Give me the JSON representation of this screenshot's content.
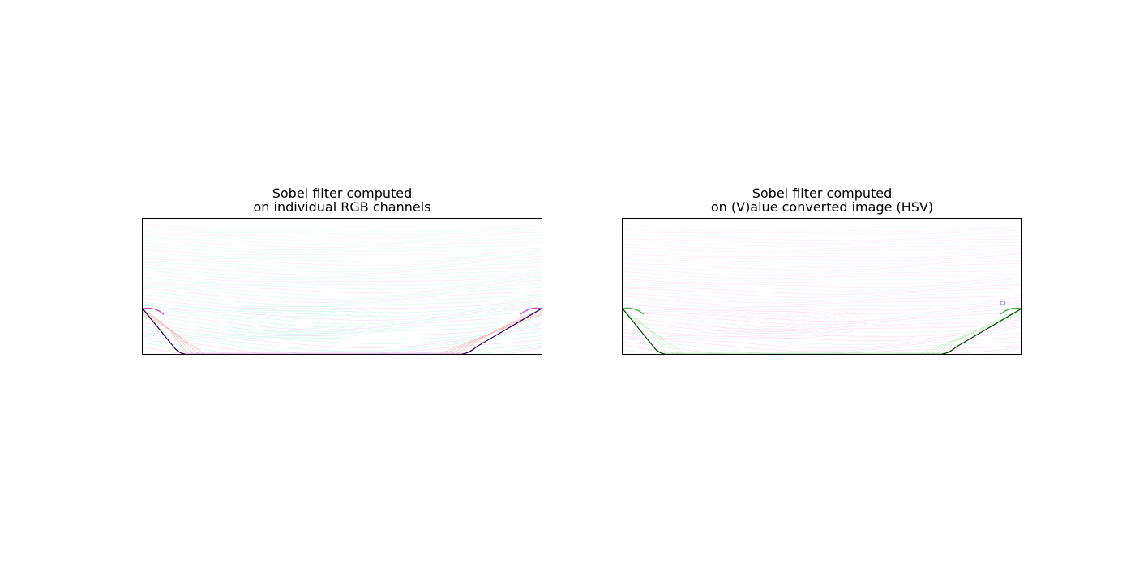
{
  "panels": [
    {
      "title_line1": "Sobel filter computed",
      "title_line2": "on individual RGB channels",
      "palette": {
        "background": "#ffffff",
        "contour_primary": "#a6f0d8",
        "contour_secondary": "#f3b8ec",
        "edge_dark": "#2a0050",
        "edge_accent": "#c040c0",
        "edge_soft": "#f2a2a2"
      }
    },
    {
      "title_line1": "Sobel filter computed",
      "title_line2": "on (V)alue converted image (HSV)",
      "palette": {
        "background": "#ffffff",
        "contour_primary": "#f6c2e6",
        "contour_secondary": "#c7e9f4",
        "edge_dark": "#004400",
        "edge_accent": "#36b036",
        "edge_soft": "#bdf0bd"
      }
    }
  ]
}
